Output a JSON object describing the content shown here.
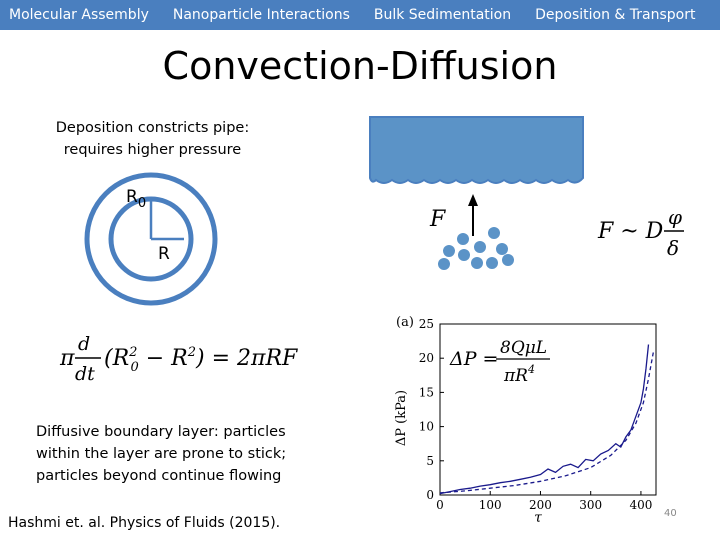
{
  "nav": {
    "tabs": [
      {
        "label": "Molecular Assembly"
      },
      {
        "label": "Nanoparticle Interactions"
      },
      {
        "label": "Bulk Sedimentation"
      },
      {
        "label": "Deposition & Transport"
      }
    ]
  },
  "slide": {
    "title": "Convection-Diffusion",
    "caption_top": "Deposition constricts pipe: requires higher pressure",
    "caption_bottom": "Diffusive boundary layer: particles within the layer are prone to stick; particles beyond continue flowing",
    "citation": "Hashmi et. al. Physics of Fluids (2015).",
    "page_number": "40"
  },
  "pipe_diagram": {
    "outer_label": "R",
    "outer_label_sub": "0",
    "inner_label": "R",
    "ring_color": "#4a7fbf"
  },
  "wall_diagram": {
    "force_label": "F",
    "wall_color": "#5b93c7",
    "particle_color": "#5b93c7",
    "particle_count": 10
  },
  "equations": {
    "rate": "π d/dt (R0² − R²) = 2πRF",
    "flux": "F ~ D φ/δ",
    "pressure": "ΔP = 8QμL / πR⁴"
  },
  "chart_data": {
    "type": "line",
    "panel_label": "(a)",
    "xlabel": "τ",
    "ylabel": "ΔP (kPa)",
    "xlim": [
      0,
      430
    ],
    "ylim": [
      0,
      25
    ],
    "xticks": [
      0,
      100,
      200,
      300,
      400
    ],
    "yticks": [
      0,
      5,
      10,
      15,
      20,
      25
    ],
    "series": [
      {
        "style": "solid",
        "color": "#1a1a8c",
        "x": [
          0,
          20,
          40,
          60,
          80,
          100,
          120,
          140,
          160,
          180,
          200,
          215,
          230,
          245,
          260,
          275,
          290,
          305,
          320,
          335,
          350,
          360,
          370,
          380,
          390,
          400,
          405,
          410,
          415
        ],
        "y": [
          0.2,
          0.5,
          0.8,
          1.0,
          1.3,
          1.5,
          1.8,
          2.0,
          2.3,
          2.6,
          3.0,
          3.8,
          3.3,
          4.2,
          4.5,
          4.0,
          5.2,
          5.0,
          6.0,
          6.5,
          7.5,
          7.0,
          8.5,
          9.5,
          11.5,
          13.5,
          15.5,
          18.5,
          22.0
        ]
      },
      {
        "style": "dashed",
        "color": "#1a1a8c",
        "x": [
          0,
          50,
          100,
          150,
          200,
          250,
          300,
          340,
          370,
          390,
          405,
          415,
          425
        ],
        "y": [
          0.3,
          0.6,
          1.0,
          1.4,
          2.0,
          2.8,
          4.0,
          5.8,
          8.0,
          10.5,
          13.5,
          17.0,
          21.0
        ]
      }
    ]
  }
}
